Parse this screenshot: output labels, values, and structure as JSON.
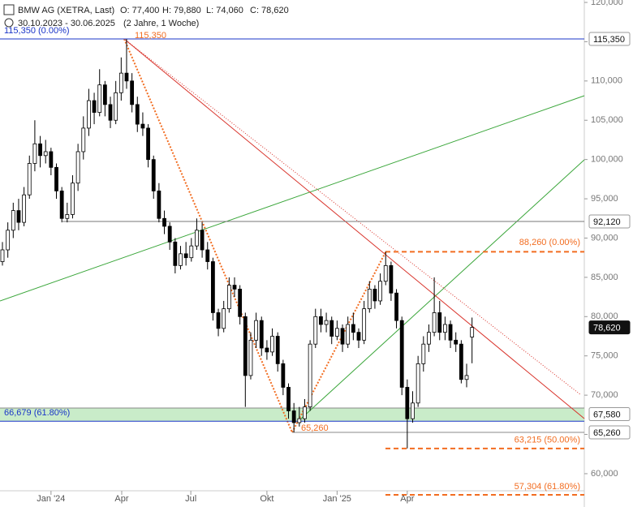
{
  "chart_data": {
    "type": "candlestick",
    "title": "BMW AG (XETRA, Last)",
    "header_ohlc": [
      "O: 77,400",
      "H: 79,880",
      "L: 74,060",
      "C: 78,620"
    ],
    "date_range": "30.10.2023 - 30.06.2025",
    "period": "(2 Jahre, 1 Woche)",
    "ylim": [
      55760,
      120310
    ],
    "yticks": [
      {
        "value": 60000,
        "label": "60,000"
      },
      {
        "value": 65000,
        "label": "65,000"
      },
      {
        "value": 70000,
        "label": "70,000"
      },
      {
        "value": 75000,
        "label": "75,000"
      },
      {
        "value": 80000,
        "label": "80,000"
      },
      {
        "value": 85000,
        "label": "85,000"
      },
      {
        "value": 90000,
        "label": "90,000"
      },
      {
        "value": 95000,
        "label": "95,000"
      },
      {
        "value": 100000,
        "label": "100,000"
      },
      {
        "value": 105000,
        "label": "105,000"
      },
      {
        "value": 110000,
        "label": "110,000"
      },
      {
        "value": 115000,
        "label": "115,000"
      },
      {
        "value": 120000,
        "label": "120,000"
      }
    ],
    "xlim": [
      -0.45,
      107.8
    ],
    "xticks": [
      {
        "value": 9,
        "label": "Jan '24"
      },
      {
        "value": 22.1,
        "label": "Apr"
      },
      {
        "value": 34.9,
        "label": "Jul"
      },
      {
        "value": 49,
        "label": "Okt"
      },
      {
        "value": 62,
        "label": "Jan '25"
      },
      {
        "value": 75,
        "label": "Apr"
      }
    ],
    "up_color": "#ffffff",
    "down_color": "#000000",
    "candles": [
      [
        87000,
        89500,
        86500,
        88500
      ],
      [
        88500,
        92000,
        87500,
        91000
      ],
      [
        91000,
        94500,
        90000,
        93500
      ],
      [
        93500,
        95000,
        91000,
        92000
      ],
      [
        92000,
        96500,
        91500,
        95500
      ],
      [
        95500,
        100500,
        95000,
        99500
      ],
      [
        99500,
        105000,
        98500,
        102000
      ],
      [
        102000,
        103000,
        99000,
        100500
      ],
      [
        100500,
        102500,
        99500,
        101000
      ],
      [
        101000,
        101500,
        98000,
        99000
      ],
      [
        99000,
        99500,
        95000,
        96000
      ],
      [
        96000,
        96500,
        92000,
        92500
      ],
      [
        92500,
        94500,
        92000,
        93000
      ],
      [
        93000,
        98000,
        92500,
        97000
      ],
      [
        97000,
        102000,
        96000,
        101000
      ],
      [
        101000,
        105500,
        100000,
        104000
      ],
      [
        104000,
        109000,
        103000,
        107500
      ],
      [
        107500,
        108500,
        104500,
        106000
      ],
      [
        106000,
        111500,
        105500,
        109500
      ],
      [
        109500,
        110000,
        105500,
        107000
      ],
      [
        107000,
        108000,
        104000,
        105000
      ],
      [
        105000,
        110000,
        104500,
        108500
      ],
      [
        108500,
        113000,
        107500,
        111000
      ],
      [
        111000,
        115350,
        109000,
        110000
      ],
      [
        110000,
        111000,
        106000,
        107000
      ],
      [
        107000,
        108000,
        103500,
        104500
      ],
      [
        104500,
        106000,
        103000,
        104000
      ],
      [
        104000,
        104500,
        99000,
        100000
      ],
      [
        100000,
        100500,
        95000,
        96000
      ],
      [
        96000,
        97000,
        92000,
        92500
      ],
      [
        92500,
        93500,
        90500,
        91500
      ],
      [
        91500,
        92000,
        88500,
        89500
      ],
      [
        89500,
        90000,
        85500,
        86500
      ],
      [
        86500,
        89000,
        86000,
        88000
      ],
      [
        88000,
        89500,
        86500,
        87500
      ],
      [
        87500,
        90000,
        87000,
        89000
      ],
      [
        89000,
        92500,
        88500,
        91000
      ],
      [
        91000,
        92000,
        87500,
        88500
      ],
      [
        88500,
        89500,
        86000,
        87000
      ],
      [
        87000,
        87500,
        79500,
        80500
      ],
      [
        80500,
        81000,
        77500,
        78500
      ],
      [
        78500,
        82000,
        78000,
        81000
      ],
      [
        81000,
        85000,
        80500,
        84000
      ],
      [
        84000,
        85000,
        82500,
        83500
      ],
      [
        83500,
        84000,
        79000,
        80000
      ],
      [
        80000,
        80500,
        68500,
        72500
      ],
      [
        72500,
        78000,
        72000,
        77000
      ],
      [
        77000,
        80500,
        76000,
        79500
      ],
      [
        79500,
        80000,
        75000,
        76000
      ],
      [
        76000,
        77000,
        74500,
        75500
      ],
      [
        75500,
        78500,
        75000,
        77500
      ],
      [
        77500,
        78000,
        73000,
        74000
      ],
      [
        74000,
        74500,
        70000,
        71000
      ],
      [
        71000,
        71500,
        67000,
        68000
      ],
      [
        68000,
        69000,
        65260,
        66500
      ],
      [
        66500,
        68500,
        66000,
        67000
      ],
      [
        67000,
        69500,
        66500,
        68500
      ],
      [
        68500,
        77000,
        68000,
        76500
      ],
      [
        76500,
        81000,
        76000,
        80000
      ],
      [
        80000,
        81000,
        78000,
        79000
      ],
      [
        79000,
        80500,
        78000,
        79500
      ],
      [
        79500,
        80000,
        76500,
        77500
      ],
      [
        77500,
        79500,
        77000,
        78500
      ],
      [
        78500,
        79000,
        75500,
        76500
      ],
      [
        76500,
        80000,
        76000,
        79000
      ],
      [
        79000,
        80500,
        77000,
        78000
      ],
      [
        78000,
        78500,
        76000,
        77000
      ],
      [
        77000,
        82000,
        76500,
        81000
      ],
      [
        81000,
        84500,
        80500,
        83500
      ],
      [
        83500,
        84000,
        81000,
        82000
      ],
      [
        82000,
        85500,
        81500,
        84500
      ],
      [
        84500,
        88260,
        84000,
        86500
      ],
      [
        86500,
        87000,
        82000,
        83000
      ],
      [
        83000,
        83500,
        78500,
        79500
      ],
      [
        79500,
        80000,
        70000,
        71000
      ],
      [
        71000,
        72000,
        63215,
        67000
      ],
      [
        67000,
        70500,
        66500,
        69000
      ],
      [
        69000,
        75000,
        68500,
        74000
      ],
      [
        74000,
        77500,
        73000,
        76500
      ],
      [
        76500,
        79000,
        75500,
        78000
      ],
      [
        78000,
        85000,
        77500,
        80500
      ],
      [
        80500,
        82000,
        77000,
        78000
      ],
      [
        78000,
        80000,
        77000,
        79000
      ],
      [
        79000,
        79500,
        76000,
        77000
      ],
      [
        77000,
        78000,
        75500,
        76500
      ],
      [
        76500,
        77000,
        71500,
        72000
      ],
      [
        72000,
        74000,
        71000,
        72500
      ],
      [
        77400,
        79880,
        74060,
        78620
      ]
    ],
    "levels": [
      {
        "value": 115350,
        "label": "115,350 (0.00%)",
        "color": "#1a35c8"
      },
      {
        "value": 66679,
        "label": "66,679 (61.80%)",
        "color": "#1a35c8"
      },
      {
        "value": 88260,
        "label": "88,260 (0.00%)",
        "color": "#f26d21"
      },
      {
        "value": 63215,
        "label": "63,215 (50.00%)",
        "color": "#f26d21"
      },
      {
        "value": 57304,
        "label": "57,304 (61.80%)",
        "color": "#f26d21"
      },
      {
        "value": 92120,
        "color": "#777777"
      },
      {
        "value": 65260,
        "label": "65,260",
        "color": "#f26d21"
      }
    ],
    "peak_label": {
      "value": 115350,
      "label": "115,350",
      "color": "#f26d21"
    },
    "price_tags": [
      {
        "value": 115350,
        "label": "115,350",
        "highlight": false
      },
      {
        "value": 92120,
        "label": "92,120",
        "highlight": false
      },
      {
        "value": 78620,
        "label": "78,620",
        "highlight": true
      },
      {
        "value": 67580,
        "label": "67,580",
        "highlight": false
      },
      {
        "value": 65260,
        "label": "65,260",
        "highlight": false
      }
    ]
  }
}
